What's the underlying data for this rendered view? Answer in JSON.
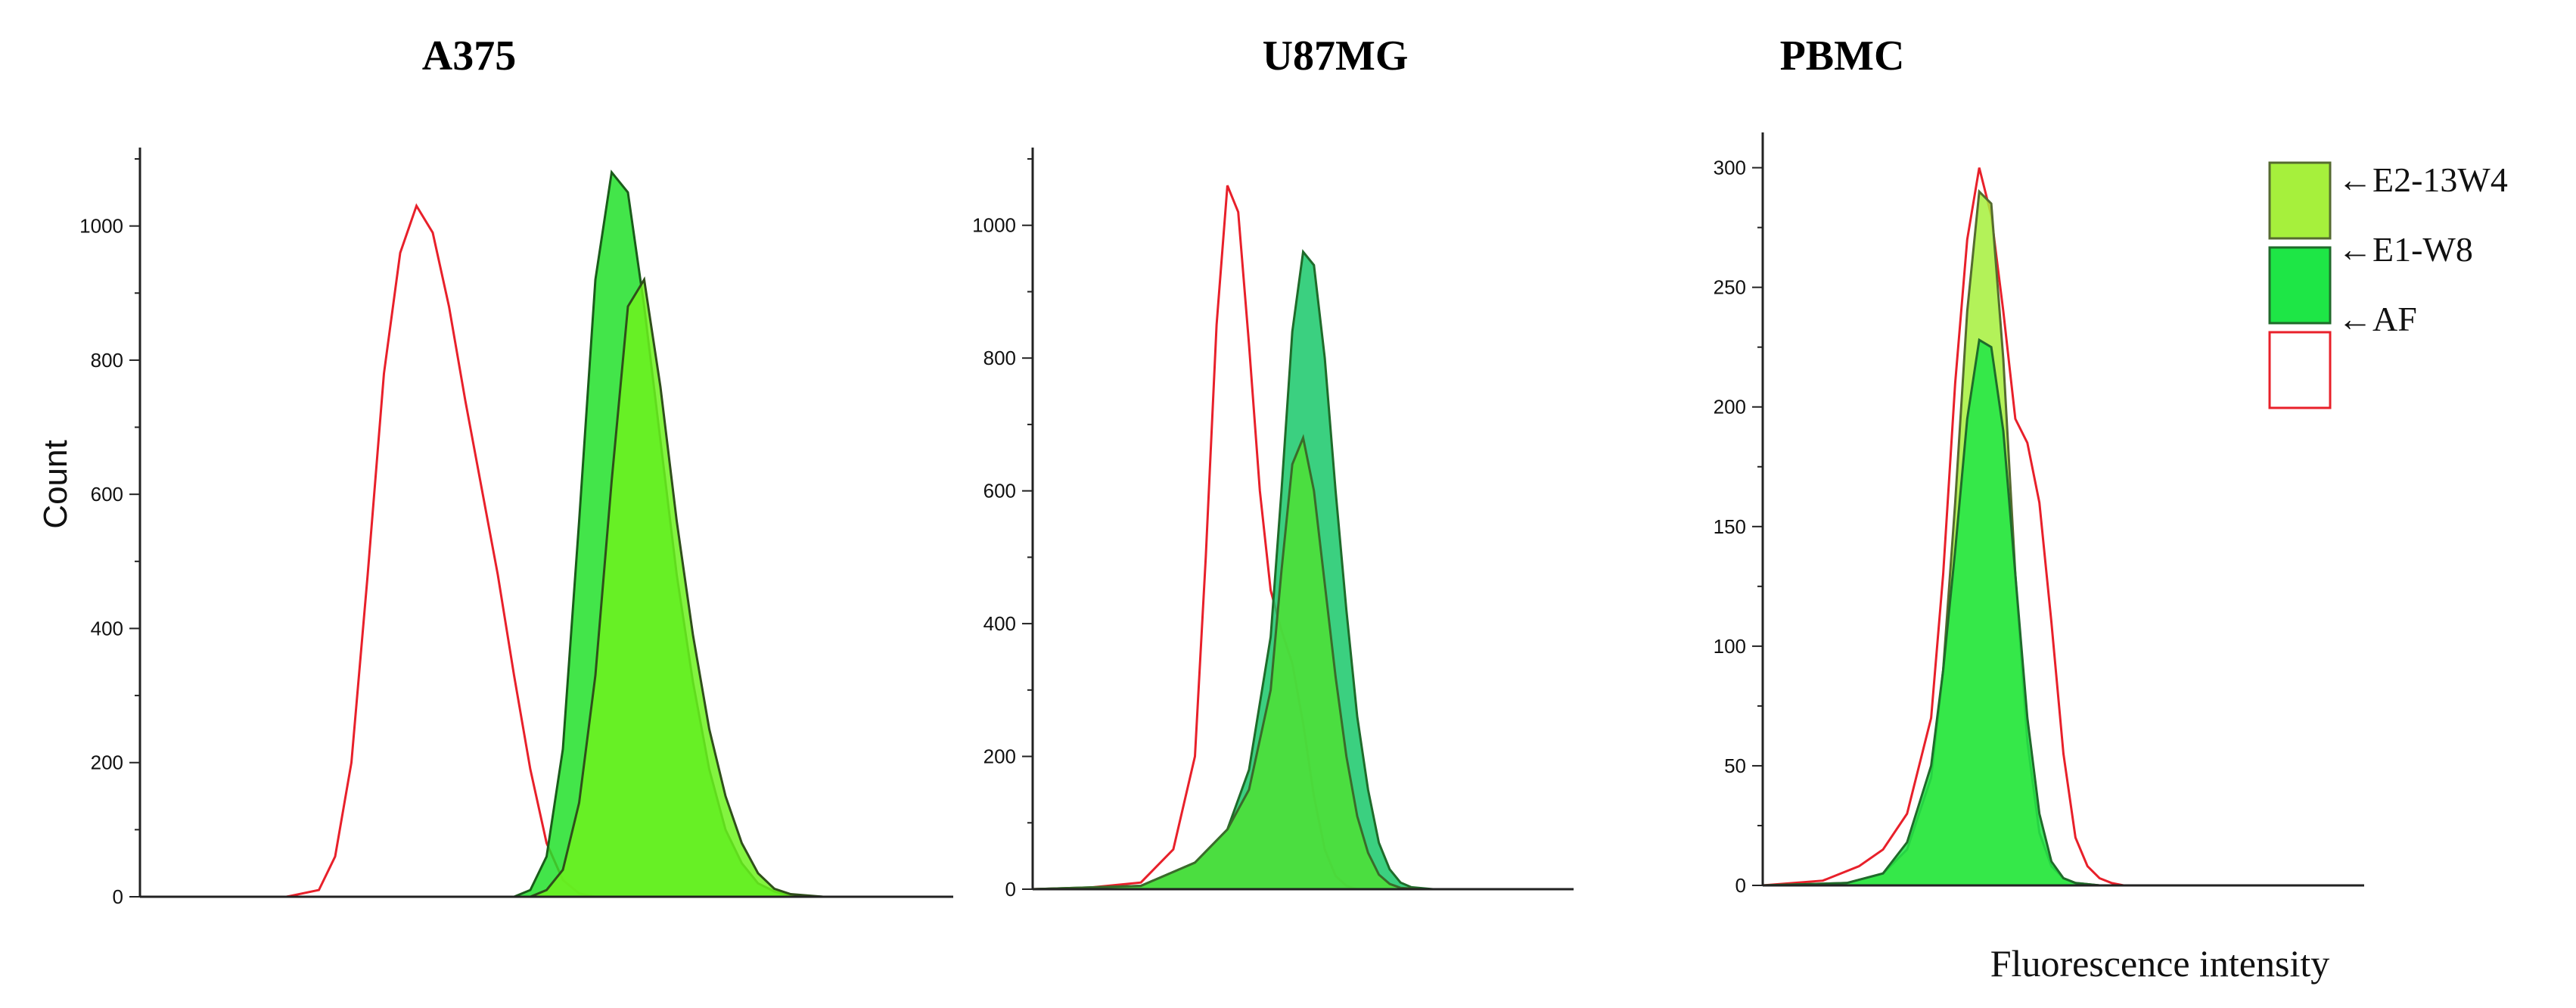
{
  "figure": {
    "ylabel": "Count",
    "xlabel": "Fluorescence intensity"
  },
  "legend": {
    "entries": [
      {
        "label": "←E2-13W4",
        "fill": "#a6f03c",
        "stroke": "#556b2f"
      },
      {
        "label": "←E1-W8",
        "fill": "#1ee646",
        "stroke": "#1f6b2a"
      },
      {
        "label": "←AF",
        "fill": "#ffffff",
        "stroke": "#e8202a"
      }
    ]
  },
  "chart_data": [
    {
      "type": "area",
      "title": "A375",
      "ylim": [
        0,
        1100
      ],
      "yticks": [
        0,
        200,
        400,
        600,
        800,
        1000
      ],
      "xlim": [
        0,
        100
      ],
      "series": [
        {
          "style": "outline",
          "stroke": "#e8202a",
          "fill": "none",
          "x": [
            0,
            18,
            22,
            24,
            26,
            28,
            30,
            32,
            34,
            36,
            38,
            40,
            42,
            44,
            46,
            48,
            50,
            52,
            54,
            56,
            58,
            60,
            62,
            64,
            100
          ],
          "y": [
            0,
            0,
            10,
            60,
            200,
            480,
            780,
            960,
            1030,
            990,
            880,
            740,
            610,
            480,
            330,
            190,
            80,
            25,
            5,
            0,
            0,
            0,
            0,
            0,
            0
          ]
        },
        {
          "style": "filled",
          "stroke": "#1a5c1a",
          "fill": "#22e02a",
          "x": [
            0,
            46,
            48,
            50,
            52,
            54,
            56,
            58,
            60,
            62,
            64,
            66,
            68,
            70,
            72,
            74,
            76,
            78,
            80,
            84,
            100
          ],
          "y": [
            0,
            0,
            10,
            60,
            220,
            560,
            920,
            1080,
            1050,
            880,
            680,
            480,
            320,
            190,
            100,
            50,
            20,
            8,
            2,
            0,
            0
          ]
        },
        {
          "style": "filled",
          "stroke": "#2f4f1a",
          "fill": "#6df21e",
          "x": [
            0,
            48,
            50,
            52,
            54,
            56,
            58,
            60,
            62,
            64,
            66,
            68,
            70,
            72,
            74,
            76,
            78,
            80,
            84,
            100
          ],
          "y": [
            0,
            0,
            10,
            40,
            140,
            330,
            620,
            880,
            920,
            760,
            560,
            390,
            250,
            150,
            80,
            35,
            12,
            4,
            0,
            0
          ]
        }
      ]
    },
    {
      "type": "area",
      "title": "U87MG",
      "ylim": [
        0,
        1100
      ],
      "yticks": [
        0,
        200,
        400,
        600,
        800,
        1000
      ],
      "xlim": [
        0,
        100
      ],
      "series": [
        {
          "style": "outline",
          "stroke": "#e8202a",
          "fill": "none",
          "x": [
            0,
            10,
            20,
            26,
            30,
            32,
            34,
            36,
            38,
            40,
            42,
            44,
            46,
            48,
            50,
            52,
            54,
            56,
            58,
            60,
            64,
            100
          ],
          "y": [
            0,
            2,
            10,
            60,
            200,
            500,
            850,
            1060,
            1020,
            820,
            600,
            450,
            390,
            340,
            250,
            140,
            60,
            20,
            5,
            0,
            0,
            0
          ]
        },
        {
          "style": "filled",
          "stroke": "#1f6b2a",
          "fill": "#19c86a",
          "x": [
            0,
            20,
            30,
            36,
            40,
            44,
            46,
            48,
            50,
            52,
            54,
            56,
            58,
            60,
            62,
            64,
            66,
            68,
            70,
            74,
            100
          ],
          "y": [
            0,
            5,
            40,
            90,
            180,
            380,
            600,
            840,
            960,
            940,
            800,
            600,
            420,
            260,
            150,
            70,
            30,
            10,
            3,
            0,
            0
          ]
        },
        {
          "style": "filled",
          "stroke": "#3a6b2a",
          "fill": "#4fe035",
          "x": [
            0,
            20,
            30,
            36,
            40,
            44,
            46,
            48,
            50,
            52,
            54,
            56,
            58,
            60,
            62,
            64,
            66,
            68,
            72,
            100
          ],
          "y": [
            0,
            5,
            40,
            90,
            150,
            300,
            480,
            640,
            680,
            600,
            460,
            320,
            200,
            110,
            55,
            22,
            8,
            2,
            0,
            0
          ]
        }
      ]
    },
    {
      "type": "area",
      "title": "PBMC",
      "ylim": [
        0,
        310
      ],
      "yticks": [
        0,
        50,
        100,
        150,
        200,
        250,
        300
      ],
      "xlim": [
        0,
        100
      ],
      "series": [
        {
          "style": "outline",
          "stroke": "#e8202a",
          "fill": "none",
          "x": [
            0,
            10,
            16,
            20,
            24,
            28,
            30,
            32,
            34,
            36,
            38,
            40,
            42,
            44,
            46,
            48,
            50,
            52,
            54,
            56,
            58,
            60,
            100
          ],
          "y": [
            0,
            2,
            8,
            15,
            30,
            70,
            130,
            210,
            270,
            300,
            280,
            240,
            195,
            185,
            160,
            110,
            55,
            20,
            8,
            3,
            1,
            0,
            0
          ]
        },
        {
          "style": "filled",
          "stroke": "#556b2f",
          "fill": "#a6f03c",
          "x": [
            0,
            14,
            20,
            24,
            28,
            30,
            32,
            34,
            36,
            38,
            40,
            42,
            44,
            46,
            48,
            50,
            52,
            56,
            100
          ],
          "y": [
            0,
            1,
            5,
            15,
            45,
            90,
            160,
            240,
            290,
            285,
            220,
            130,
            60,
            22,
            8,
            3,
            1,
            0,
            0
          ]
        },
        {
          "style": "filled",
          "stroke": "#1f6b2a",
          "fill": "#1ee646",
          "x": [
            0,
            14,
            20,
            24,
            28,
            30,
            32,
            34,
            36,
            38,
            40,
            42,
            44,
            46,
            48,
            50,
            52,
            56,
            100
          ],
          "y": [
            0,
            1,
            5,
            18,
            50,
            90,
            140,
            195,
            228,
            225,
            190,
            130,
            70,
            30,
            10,
            3,
            1,
            0,
            0
          ]
        }
      ]
    }
  ]
}
